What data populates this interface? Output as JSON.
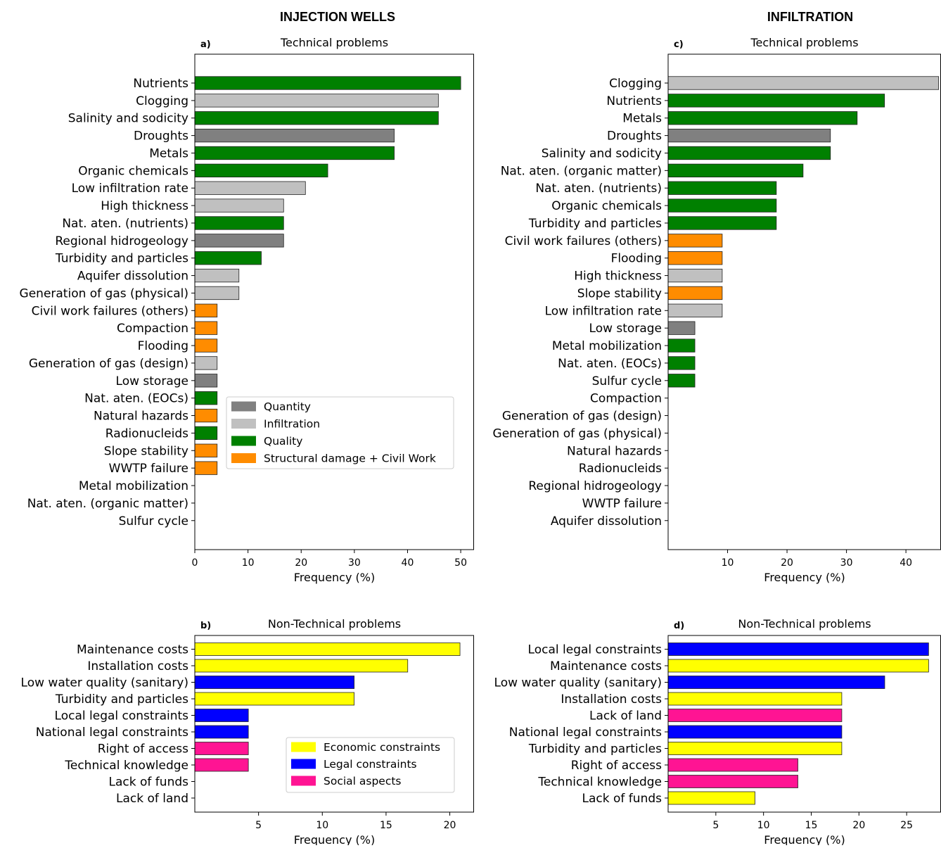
{
  "columns": {
    "left_title": "INJECTION WELLS",
    "right_title": "INFILTRATION"
  },
  "colors": {
    "Quantity": "#808080",
    "Infiltration": "#c0c0c0",
    "Quality": "#008000",
    "Structural": "#ff8c00",
    "Economic": "#ffff00",
    "Legal": "#0000ff",
    "Social": "#ff1493"
  },
  "chart_data": [
    {
      "id": "a",
      "letter": "a)",
      "type": "bar",
      "orientation": "horizontal",
      "title": "Technical problems",
      "xlabel": "Frequency (%)",
      "xlim": [
        0,
        52.5
      ],
      "xticks": [
        0,
        10,
        20,
        30,
        40,
        50
      ],
      "categories": [
        "Nutrients",
        "Clogging",
        "Salinity and sodicity",
        "Droughts",
        "Metals",
        "Organic chemicals",
        "Low infiltration rate",
        "High thickness",
        "Nat. aten. (nutrients)",
        "Regional hidrogeology",
        "Turbidity and particles",
        "Aquifer dissolution",
        "Generation of gas (physical)",
        "Civil work failures (others)",
        "Compaction",
        "Flooding",
        "Generation of gas (design)",
        "Low storage",
        "Nat. aten. (EOCs)",
        "Natural hazards",
        "Radionucleids",
        "Slope stability",
        "WWTP failure",
        "Metal mobilization",
        "Nat. aten. (organic matter)",
        "Sulfur cycle"
      ],
      "values": [
        50.0,
        45.8,
        45.8,
        37.5,
        37.5,
        25.0,
        20.8,
        16.7,
        16.7,
        16.7,
        12.5,
        8.3,
        8.3,
        4.2,
        4.2,
        4.2,
        4.2,
        4.2,
        4.2,
        4.2,
        4.2,
        4.2,
        4.2,
        0,
        0,
        0
      ],
      "groups": [
        "Quality",
        "Infiltration",
        "Quality",
        "Quantity",
        "Quality",
        "Quality",
        "Infiltration",
        "Infiltration",
        "Quality",
        "Quantity",
        "Quality",
        "Infiltration",
        "Infiltration",
        "Structural",
        "Structural",
        "Structural",
        "Infiltration",
        "Quantity",
        "Quality",
        "Structural",
        "Quality",
        "Structural",
        "Structural",
        "Quality",
        "Quality",
        "Quality"
      ],
      "legend": {
        "placement": "lower-right",
        "entries": [
          {
            "group": "Quantity",
            "label": "Quantity"
          },
          {
            "group": "Infiltration",
            "label": "Infiltration"
          },
          {
            "group": "Quality",
            "label": "Quality"
          },
          {
            "group": "Structural",
            "label": "Structural damage + Civil Work"
          }
        ]
      }
    },
    {
      "id": "c",
      "letter": "c)",
      "type": "bar",
      "orientation": "horizontal",
      "title": "Technical problems",
      "xlabel": "Frequency (%)",
      "xlim": [
        0,
        45.9
      ],
      "xticks": [
        10,
        20,
        30,
        40
      ],
      "categories": [
        "Clogging",
        "Nutrients",
        "Metals",
        "Droughts",
        "Salinity and sodicity",
        "Nat. aten. (organic matter)",
        "Nat. aten. (nutrients)",
        "Organic chemicals",
        "Turbidity and particles",
        "Civil work failures (others)",
        "Flooding",
        "High thickness",
        "Slope stability",
        "Low infiltration rate",
        "Low storage",
        "Metal mobilization",
        "Nat. aten. (EOCs)",
        "Sulfur cycle",
        "Compaction",
        "Generation of gas (design)",
        "Generation of gas (physical)",
        "Natural hazards",
        "Radionucleids",
        "Regional hidrogeology",
        "WWTP failure",
        "Aquifer dissolution"
      ],
      "values": [
        45.5,
        36.4,
        31.8,
        27.3,
        27.3,
        22.7,
        18.2,
        18.2,
        18.2,
        9.1,
        9.1,
        9.1,
        9.1,
        9.1,
        4.5,
        4.5,
        4.5,
        4.5,
        0,
        0,
        0,
        0,
        0,
        0,
        0,
        0
      ],
      "groups": [
        "Infiltration",
        "Quality",
        "Quality",
        "Quantity",
        "Quality",
        "Quality",
        "Quality",
        "Quality",
        "Quality",
        "Structural",
        "Structural",
        "Infiltration",
        "Structural",
        "Infiltration",
        "Quantity",
        "Quality",
        "Quality",
        "Quality",
        "Structural",
        "Infiltration",
        "Infiltration",
        "Structural",
        "Quality",
        "Quantity",
        "Structural",
        "Infiltration"
      ]
    },
    {
      "id": "b",
      "letter": "b)",
      "type": "bar",
      "orientation": "horizontal",
      "title": "Non-Technical problems",
      "xlabel": "Frequency (%)",
      "xlim": [
        0,
        21.9
      ],
      "xticks": [
        5,
        10,
        15,
        20
      ],
      "categories": [
        "Maintenance costs",
        "Installation costs",
        "Low water quality (sanitary)",
        "Turbidity and particles",
        "Local legal constraints",
        "National legal constraints",
        "Right of access",
        "Technical knowledge",
        "Lack of funds",
        "Lack of land"
      ],
      "values": [
        20.8,
        16.7,
        12.5,
        12.5,
        4.2,
        4.2,
        4.2,
        4.2,
        0,
        0
      ],
      "groups": [
        "Economic",
        "Economic",
        "Legal",
        "Economic",
        "Legal",
        "Legal",
        "Social",
        "Social",
        "Economic",
        "Social"
      ],
      "legend": {
        "placement": "lower-right",
        "entries": [
          {
            "group": "Economic",
            "label": "Economic constraints"
          },
          {
            "group": "Legal",
            "label": "Legal constraints"
          },
          {
            "group": "Social",
            "label": "Social aspects"
          }
        ]
      }
    },
    {
      "id": "d",
      "letter": "d)",
      "type": "bar",
      "orientation": "horizontal",
      "title": "Non-Technical problems",
      "xlabel": "Frequency (%)",
      "xlim": [
        0,
        28.6
      ],
      "xticks": [
        5,
        10,
        15,
        20,
        25
      ],
      "categories": [
        "Local legal constraints",
        "Maintenance costs",
        "Low water quality (sanitary)",
        "Installation costs",
        "Lack of land",
        "National legal constraints",
        "Turbidity and particles",
        "Right of access",
        "Technical knowledge",
        "Lack of funds"
      ],
      "values": [
        27.3,
        27.3,
        22.7,
        18.2,
        18.2,
        18.2,
        18.2,
        13.6,
        13.6,
        9.1
      ],
      "groups": [
        "Legal",
        "Economic",
        "Legal",
        "Economic",
        "Social",
        "Legal",
        "Economic",
        "Social",
        "Social",
        "Economic"
      ]
    }
  ]
}
